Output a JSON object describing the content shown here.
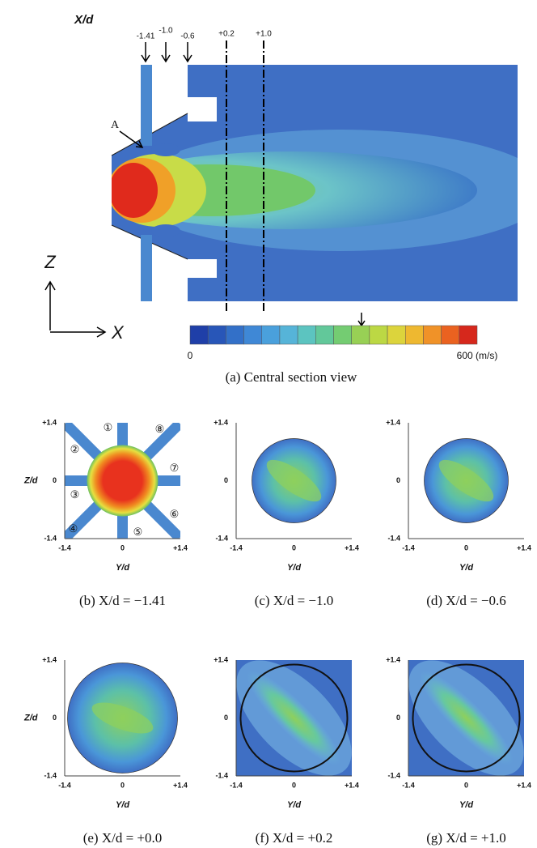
{
  "figure": {
    "top": {
      "axis_label": "X/d",
      "stations": [
        "-1.41",
        "-1.0",
        "-0.6",
        "+0.2",
        "+1.0"
      ],
      "point_label": "A",
      "z_label": "Z",
      "x_label": "X",
      "colorbar_min": "0",
      "colorbar_max": "600 (m/s)",
      "caption": "(a) Central section view"
    },
    "panels": [
      {
        "caption": "(b) X/d = −1.41",
        "y_label": "Z/d",
        "x_label": "Y/d",
        "y_ticks": [
          "+1.4",
          "0",
          "-1.4"
        ],
        "x_ticks": [
          "-1.4",
          "0",
          "+1.4"
        ],
        "ports": [
          "①",
          "②",
          "③",
          "④",
          "⑤",
          "⑥",
          "⑦",
          "⑧"
        ]
      },
      {
        "caption": "(c) X/d = −1.0",
        "x_label": "Y/d",
        "y_ticks": [
          "+1.4",
          "0",
          "-1.4"
        ],
        "x_ticks": [
          "-1.4",
          "0",
          "+1.4"
        ]
      },
      {
        "caption": "(d) X/d = −0.6",
        "x_label": "Y/d",
        "y_ticks": [
          "+1.4",
          "0",
          "-1.4"
        ],
        "x_ticks": [
          "-1.4",
          "0",
          "+1.4"
        ]
      },
      {
        "caption": "(e) X/d = +0.0",
        "y_label": "Z/d",
        "x_label": "Y/d",
        "y_ticks": [
          "+1.4",
          "0",
          "-1.4"
        ],
        "x_ticks": [
          "-1.4",
          "0",
          "+1.4"
        ]
      },
      {
        "caption": "(f) X/d = +0.2",
        "x_label": "Y/d",
        "y_ticks": [
          "+1.4",
          "0",
          "-1.4"
        ],
        "x_ticks": [
          "-1.4",
          "0",
          "+1.4"
        ]
      },
      {
        "caption": "(g) X/d = +1.0",
        "x_label": "Y/d",
        "y_ticks": [
          "+1.4",
          "0",
          "-1.4"
        ],
        "x_ticks": [
          "-1.4",
          "0",
          "+1.4"
        ]
      }
    ]
  }
}
